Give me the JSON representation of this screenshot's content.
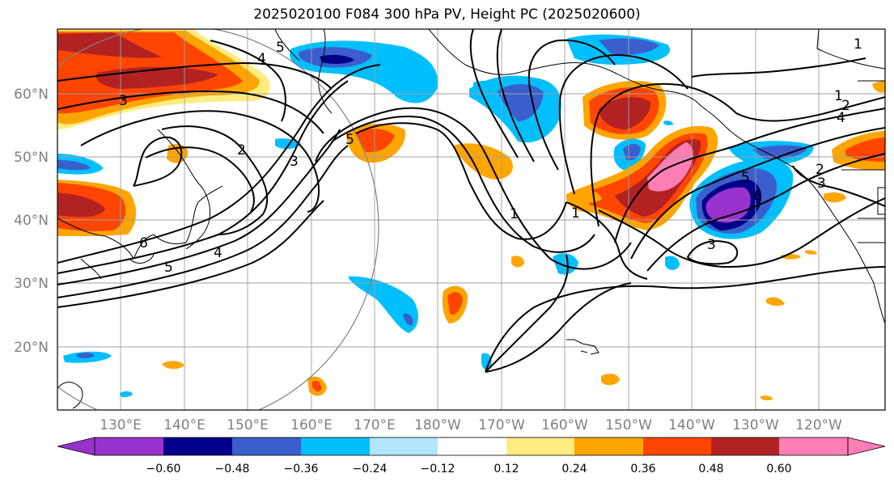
{
  "title": "2025020100 F084 300 hPa PV, Height PC (2025020600)",
  "map": {
    "lat_labels": [
      "60°N",
      "50°N",
      "40°N",
      "30°N",
      "20°N"
    ],
    "lon_labels": [
      "130°E",
      "140°E",
      "150°E",
      "160°E",
      "170°E",
      "180°W",
      "170°W",
      "160°W",
      "150°W",
      "140°W",
      "130°W",
      "120°W"
    ],
    "contour_labels": [
      "4",
      "5",
      "3",
      "2",
      "3",
      "5",
      "4",
      "6",
      "5",
      "1",
      "1",
      "1",
      "2",
      "4",
      "2",
      "3",
      "6",
      "5",
      "1",
      "3"
    ],
    "colors": {
      "pos_0.12": "#ffec80",
      "pos_0.24": "#ffa500",
      "pos_0.36": "#ff4500",
      "pos_0.48": "#b22222",
      "pos_0.60": "#ff7fb4",
      "neg_0.12": "#b3e5ff",
      "neg_0.24": "#00bfff",
      "neg_0.36": "#3a5fcd",
      "neg_0.48": "#00008b",
      "neg_0.60": "#9932cc"
    }
  },
  "colorbar": {
    "labels": [
      "−0.60",
      "−0.48",
      "−0.36",
      "−0.24",
      "−0.12",
      "0.12",
      "0.24",
      "0.36",
      "0.48",
      "0.60"
    ],
    "colors": [
      "#9932cc",
      "#00008b",
      "#3a5fcd",
      "#00bfff",
      "#b3e5ff",
      "#ffffff",
      "#ffec80",
      "#ffa500",
      "#ff4500",
      "#b22222",
      "#ff7fb4"
    ]
  }
}
